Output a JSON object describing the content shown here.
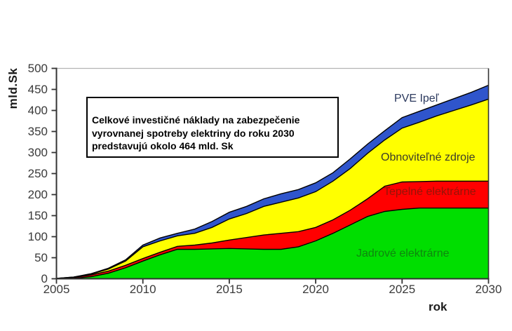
{
  "page": {
    "background": "#ffffff"
  },
  "annotation": {
    "text": "Celkové investičné náklady na zabezpečenie\nvyrovnanej spotreby elektriny do roku 2030\npredstavujú okolo 464 mld. Sk"
  },
  "chart_data": {
    "type": "area",
    "stacked": true,
    "xlabel": "rok",
    "ylabel": "mld.Sk",
    "ylim": [
      0,
      500
    ],
    "xlim": [
      2005,
      2030
    ],
    "y_ticks": [
      0,
      50,
      100,
      150,
      200,
      250,
      300,
      350,
      400,
      450,
      500
    ],
    "x_ticks": [
      2005,
      2010,
      2015,
      2020,
      2025,
      2030
    ],
    "grid": "top-line-only",
    "legend": "in-plot-labels",
    "x": [
      2005,
      2006,
      2007,
      2008,
      2009,
      2010,
      2011,
      2012,
      2013,
      2014,
      2015,
      2016,
      2017,
      2018,
      2019,
      2020,
      2021,
      2022,
      2023,
      2024,
      2025,
      2026,
      2027,
      2028,
      2029,
      2030
    ],
    "series": [
      {
        "id": "jadrove-elektrarne",
        "name": "Jadrové elektrárne",
        "color": "#00DE00",
        "label_color": "#0E860E",
        "values": [
          0,
          1,
          5,
          13,
          26,
          42,
          57,
          70,
          70,
          71,
          72,
          71,
          70,
          70,
          76,
          90,
          108,
          128,
          148,
          160,
          165,
          168,
          168,
          168,
          168,
          168
        ]
      },
      {
        "id": "tepelne-elektrarne",
        "name": "Tepelné elektrárne",
        "color": "#FF0000",
        "label_color": "#941408",
        "values": [
          1,
          2,
          4,
          5,
          6,
          6,
          6,
          7,
          10,
          14,
          20,
          27,
          34,
          38,
          36,
          32,
          32,
          35,
          42,
          60,
          65,
          63,
          64,
          64,
          64,
          64
        ]
      },
      {
        "id": "obnovitelne-zdroje",
        "name": "Obnoviteľné zdroje",
        "color": "#FFFF00",
        "label_color": "#3C3C28",
        "values": [
          0,
          1,
          2,
          5,
          10,
          28,
          27,
          25,
          28,
          37,
          50,
          57,
          68,
          74,
          80,
          85,
          92,
          99,
          108,
          110,
          128,
          141,
          155,
          168,
          181,
          195
        ]
      },
      {
        "id": "pve-ipel",
        "name": "PVE Ipeľ",
        "color": "#2F55CC",
        "label_color": "#2C3A5E",
        "values": [
          0,
          0,
          1,
          2,
          3,
          4,
          7,
          6,
          10,
          14,
          16,
          17,
          18,
          20,
          20,
          21,
          20,
          23,
          22,
          22,
          25,
          26,
          26,
          28,
          30,
          33
        ]
      }
    ],
    "totals_note": "total at 2030 ≈ 460–464 mld. Sk"
  },
  "style_colors": {
    "axis": "#333333",
    "boundary_line": "#000000",
    "top_gridline": "#b3b3b3",
    "tick_text": "#3a3a3a"
  }
}
